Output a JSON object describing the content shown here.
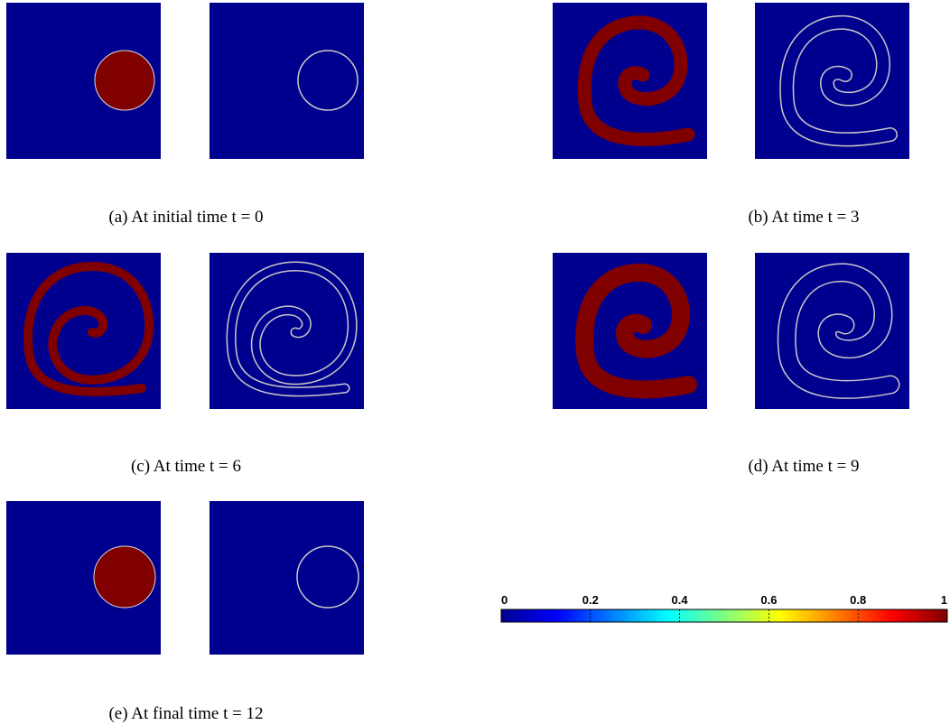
{
  "captions": [
    "(a) At initial time t = 0",
    "(b) At time t = 3",
    "(c) At time t = 6",
    "(d) At time t = 9",
    "(e) At final time t = 12"
  ],
  "colorbar": {
    "lim": [
      0,
      1
    ],
    "ticks": [
      0,
      0.2,
      0.4,
      0.6,
      0.8,
      1
    ]
  }
}
